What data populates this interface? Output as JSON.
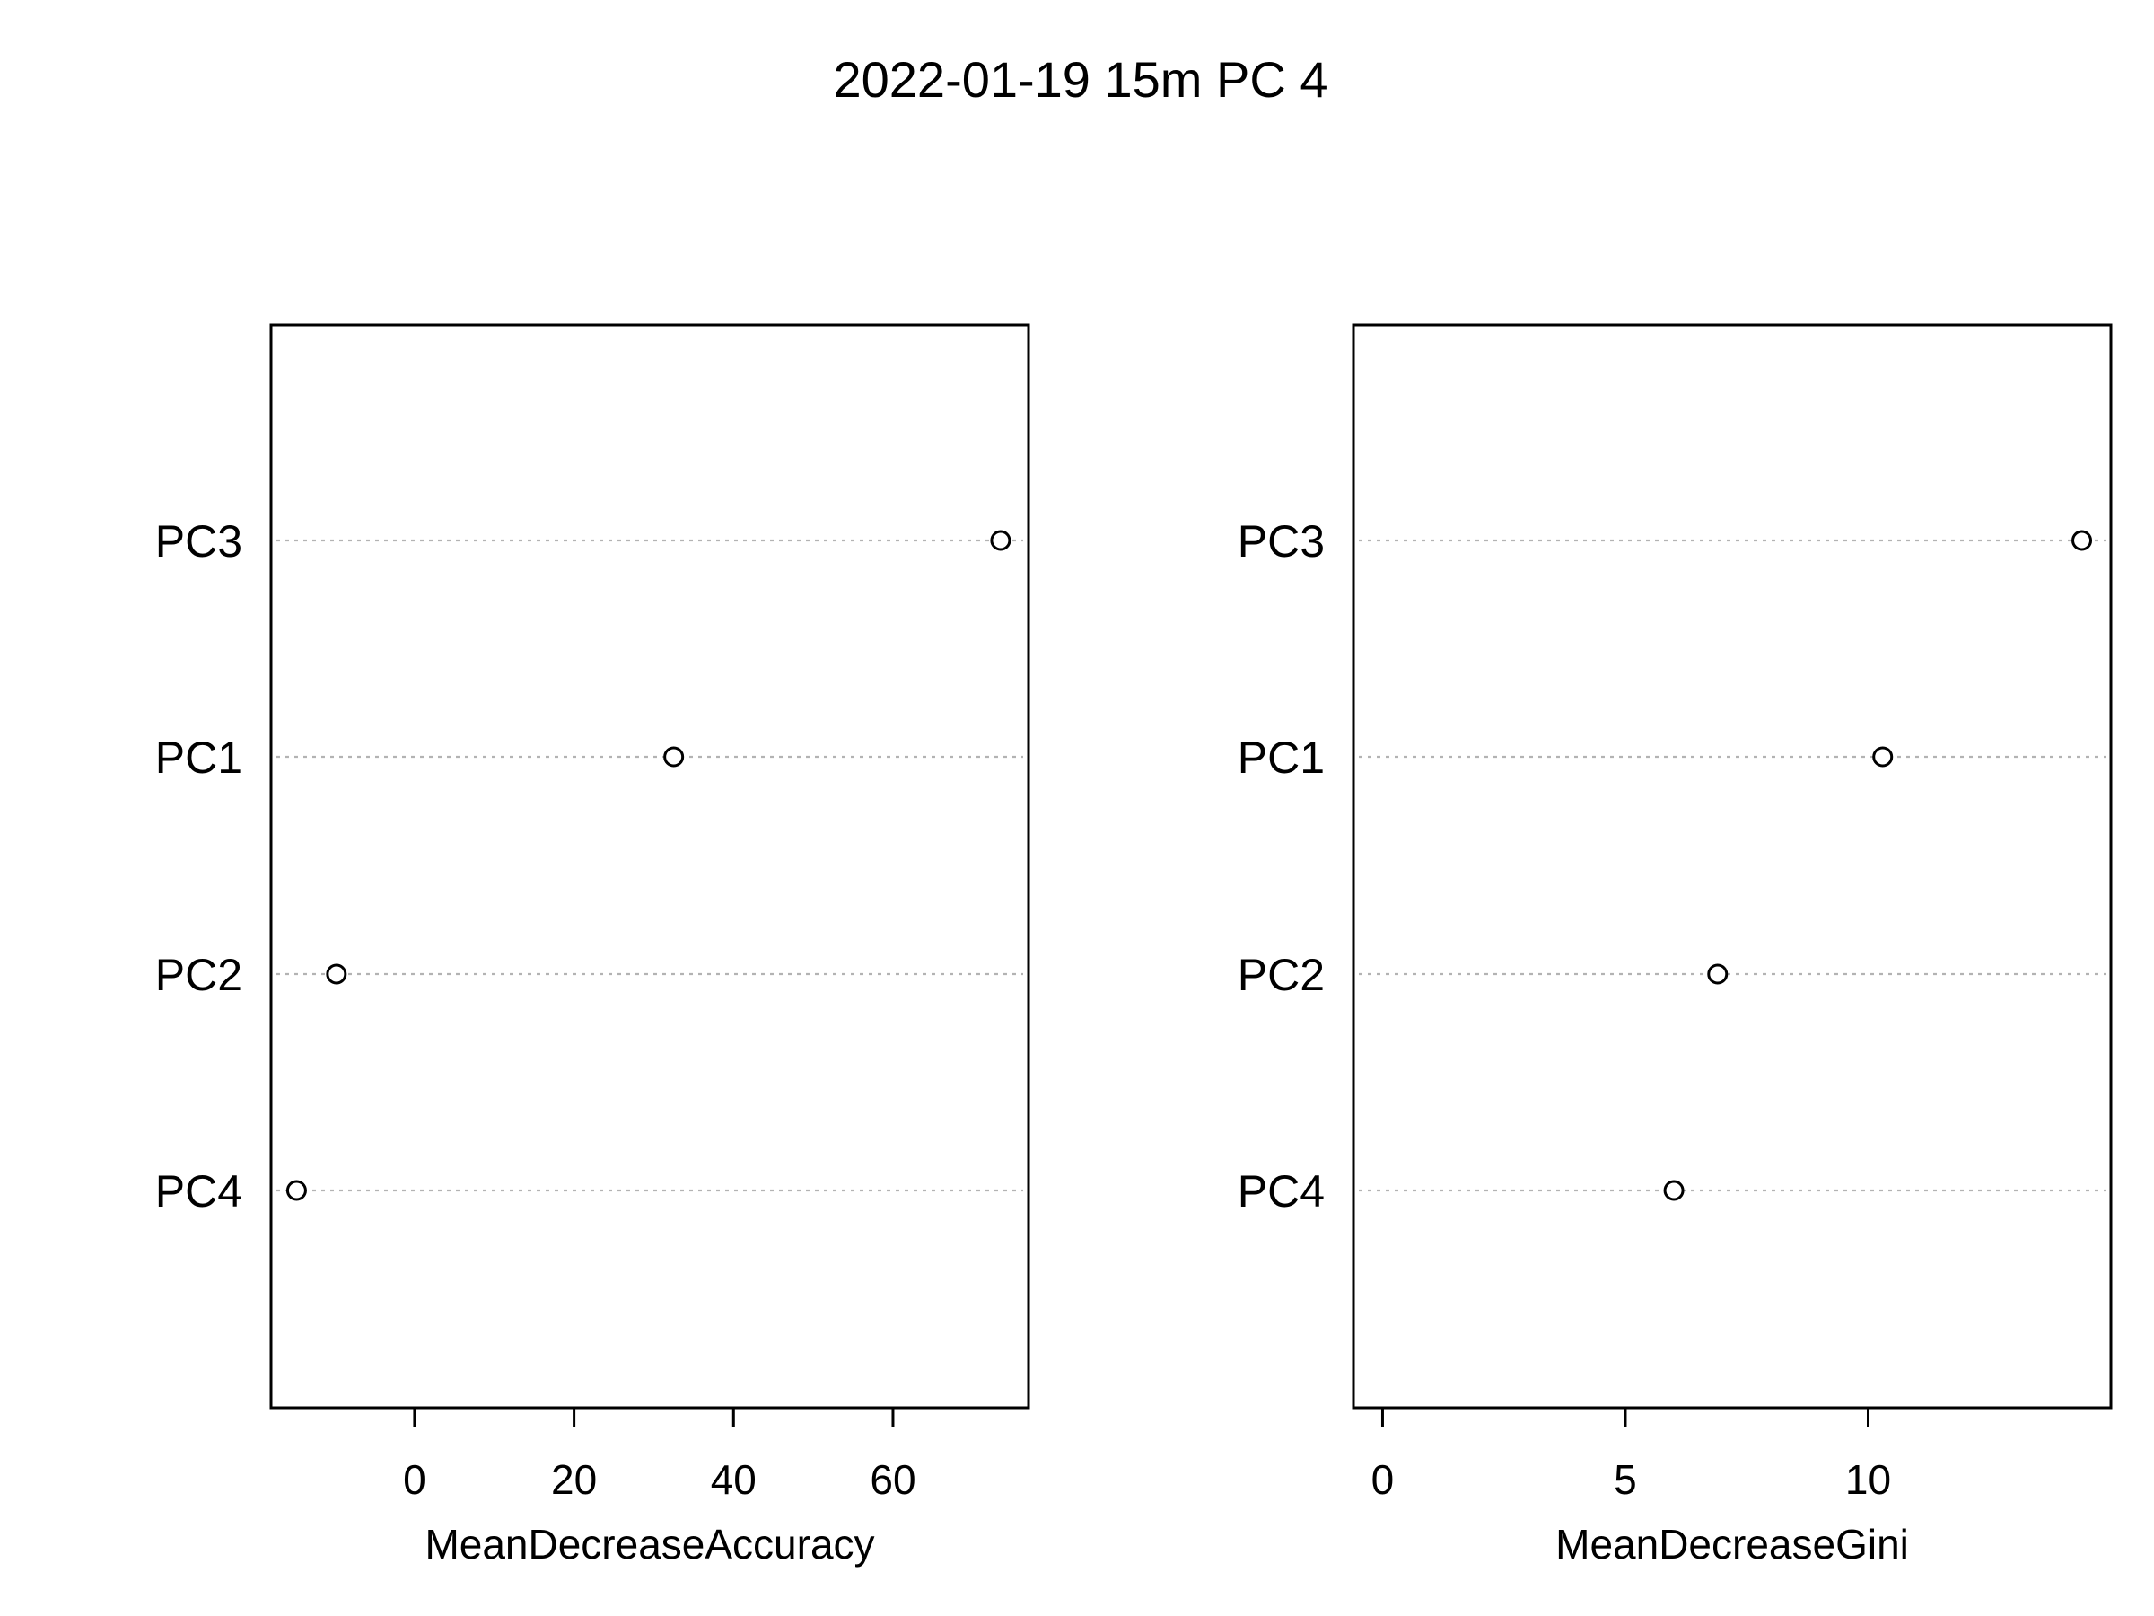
{
  "title": "2022-01-19 15m PC 4",
  "chart_data": [
    {
      "type": "scatter",
      "xlabel": "MeanDecreaseAccuracy",
      "categories": [
        "PC3",
        "PC1",
        "PC2",
        "PC4"
      ],
      "values": [
        73.5,
        32.5,
        -9.8,
        -14.8
      ],
      "xticks": [
        0,
        20,
        40,
        60
      ],
      "xlim": [
        -18,
        77
      ],
      "grid": "horizontal dotted guide per category"
    },
    {
      "type": "scatter",
      "xlabel": "MeanDecreaseGini",
      "categories": [
        "PC3",
        "PC1",
        "PC2",
        "PC4"
      ],
      "values": [
        14.4,
        10.3,
        6.9,
        6.0
      ],
      "xticks": [
        0,
        5,
        10
      ],
      "xlim": [
        -0.6,
        15.0
      ],
      "grid": "horizontal dotted guide per category"
    }
  ]
}
